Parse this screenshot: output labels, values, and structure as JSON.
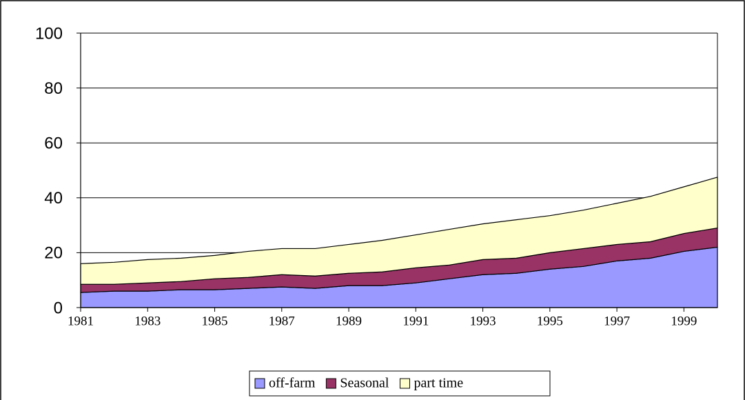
{
  "chart_data": {
    "type": "stacked-area",
    "x": [
      1981,
      1982,
      1983,
      1984,
      1985,
      1986,
      1987,
      1988,
      1989,
      1990,
      1991,
      1992,
      1993,
      1994,
      1995,
      1996,
      1997,
      1998,
      1999,
      2000
    ],
    "xlim": [
      1981,
      2000
    ],
    "xticks": [
      1981,
      1983,
      1985,
      1987,
      1989,
      1991,
      1993,
      1995,
      1997,
      1999
    ],
    "ylim": [
      0,
      100
    ],
    "yticks": [
      0,
      20,
      40,
      60,
      80,
      100
    ],
    "grid": true,
    "series": [
      {
        "name": "off-farm",
        "color": "#9999ff",
        "values": [
          5.5,
          6,
          6,
          6.5,
          6.5,
          7,
          7.5,
          7,
          8,
          8,
          9,
          10.5,
          12,
          12.5,
          14,
          15,
          17,
          18,
          20.5,
          22
        ]
      },
      {
        "name": "Seasonal",
        "color": "#993366",
        "values": [
          3,
          2.5,
          3,
          3,
          4,
          4,
          4.5,
          4.5,
          4.5,
          5,
          5.5,
          5,
          5.5,
          5.5,
          6,
          6.5,
          6,
          6,
          6.5,
          7
        ]
      },
      {
        "name": "part time",
        "color": "#ffffcc",
        "values": [
          7.5,
          8,
          8.5,
          8.5,
          8.5,
          9.5,
          9.5,
          10,
          10.5,
          11.5,
          12,
          13,
          13,
          14,
          13.5,
          14,
          15,
          16.5,
          17,
          18.5
        ]
      }
    ],
    "legend": "bottom"
  }
}
